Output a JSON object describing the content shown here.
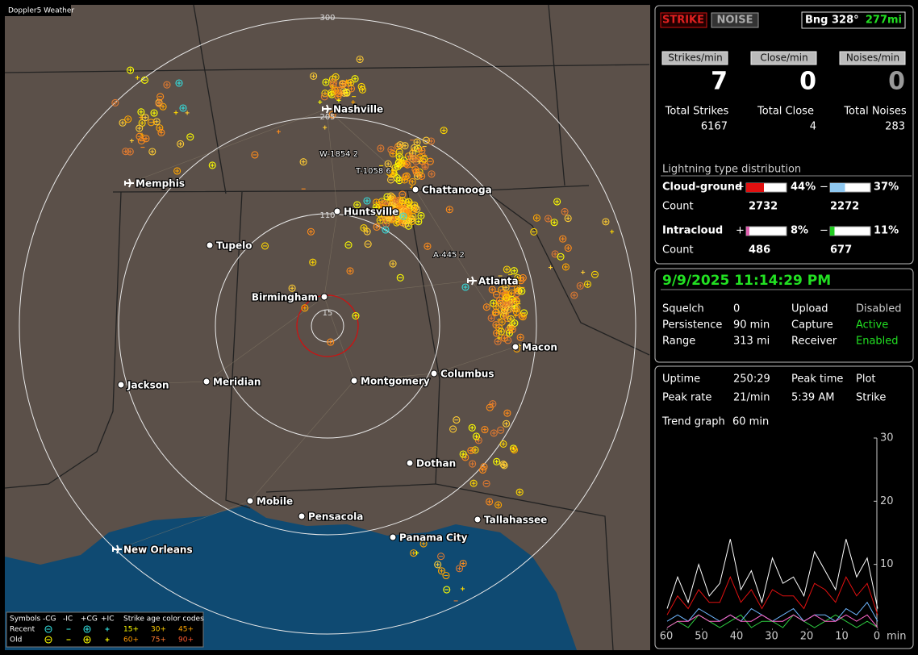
{
  "map": {
    "watermark": "Doppler5 Weather",
    "ring_labels": [
      "300",
      "205",
      "110",
      "15"
    ],
    "cities": [
      "Nashville",
      "Memphis",
      "Chattanooga",
      "Huntsville",
      "Tupelo",
      "Atlanta",
      "Birmingham",
      "Macon",
      "Jackson",
      "Meridian",
      "Montgomery",
      "Columbus",
      "Dothan",
      "Mobile",
      "Pensacola",
      "Panama City",
      "Tallahassee",
      "New Orleans"
    ],
    "strike_labels": [
      "W-1854 2",
      "T-1058 6",
      "A-445 2"
    ],
    "legend": {
      "header": [
        "Symbols",
        "-CG",
        "-IC",
        "+CG",
        "+IC"
      ],
      "age_title": "Strike age color codes",
      "rows": [
        {
          "label": "Recent",
          "ages": [
            "15+",
            "30+",
            "45+"
          ]
        },
        {
          "label": "Old",
          "ages": [
            "60+",
            "75+",
            "90+"
          ]
        }
      ]
    }
  },
  "status": {
    "strike_button": "STRIKE",
    "noise_button": "NOISE",
    "bearing": "Bng 328°",
    "distance": "277mi"
  },
  "rates": [
    {
      "label": "Strikes/min",
      "value": "7"
    },
    {
      "label": "Close/min",
      "value": "0"
    },
    {
      "label": "Noises/min",
      "value": "0"
    }
  ],
  "totals": [
    {
      "label": "Total Strikes",
      "value": "6167"
    },
    {
      "label": "Total Close",
      "value": "4"
    },
    {
      "label": "Total Noises",
      "value": "283"
    }
  ],
  "distribution": {
    "title": "Lightning type distribution",
    "types": [
      {
        "label": "Cloud-ground",
        "plus": "+",
        "minus": "−",
        "plus_pct": {
          "value": 44,
          "label": "44%"
        },
        "minus_pct": {
          "value": 37,
          "label": "37%"
        },
        "count_label": "Count",
        "plus_count": "2732",
        "minus_count": "2272"
      },
      {
        "label": "Intracloud",
        "plus": "+",
        "minus": "−",
        "plus_pct": {
          "value": 8,
          "label": "8%"
        },
        "minus_pct": {
          "value": 11,
          "label": "11%"
        },
        "count_label": "Count",
        "plus_count": "486",
        "minus_count": "677"
      }
    ]
  },
  "clock": "9/9/2025 11:14:29 PM",
  "settings": [
    [
      "Squelch",
      "0",
      "Upload",
      "Disabled"
    ],
    [
      "Persistence",
      "90 min",
      "Capture",
      "Active"
    ],
    [
      "Range",
      "313 mi",
      "Receiver",
      "Enabled"
    ]
  ],
  "stats": [
    [
      "Uptime",
      "250:29",
      "Peak time",
      "Plot"
    ],
    [
      "Peak rate",
      "21/min",
      "5:39 AM",
      "Strike"
    ],
    [
      "Trend graph",
      "60 min"
    ]
  ],
  "trend_graph": {
    "ylim": [
      0,
      30
    ],
    "yticks": [
      30,
      20,
      10
    ],
    "xlim": [
      60,
      0
    ],
    "xticks": [
      60,
      50,
      40,
      30,
      20,
      10,
      0
    ],
    "x_unit": "min",
    "x": [
      60,
      57,
      54,
      51,
      48,
      45,
      42,
      39,
      36,
      33,
      30,
      27,
      24,
      21,
      18,
      15,
      12,
      9,
      6,
      3,
      0
    ],
    "series": [
      {
        "color": "#ffffff",
        "values": [
          3,
          8,
          4,
          10,
          5,
          7,
          14,
          6,
          9,
          4,
          11,
          7,
          8,
          5,
          12,
          9,
          6,
          14,
          8,
          11,
          3
        ]
      },
      {
        "color": "#e01010",
        "values": [
          2,
          5,
          3,
          6,
          4,
          4,
          8,
          4,
          6,
          3,
          6,
          5,
          5,
          3,
          7,
          6,
          4,
          8,
          5,
          7,
          2
        ]
      },
      {
        "color": "#2ecc40",
        "values": [
          0,
          1,
          0,
          2,
          1,
          0,
          1,
          2,
          0,
          1,
          1,
          0,
          2,
          1,
          0,
          1,
          2,
          1,
          0,
          1,
          0
        ]
      },
      {
        "color": "#6fb7ff",
        "values": [
          1,
          2,
          1,
          3,
          2,
          1,
          2,
          1,
          3,
          2,
          1,
          2,
          3,
          1,
          2,
          2,
          1,
          3,
          2,
          4,
          1
        ]
      },
      {
        "color": "#ff66cc",
        "values": [
          0,
          1,
          1,
          2,
          1,
          1,
          2,
          1,
          1,
          2,
          1,
          1,
          2,
          1,
          2,
          1,
          1,
          2,
          1,
          2,
          0
        ]
      }
    ]
  }
}
